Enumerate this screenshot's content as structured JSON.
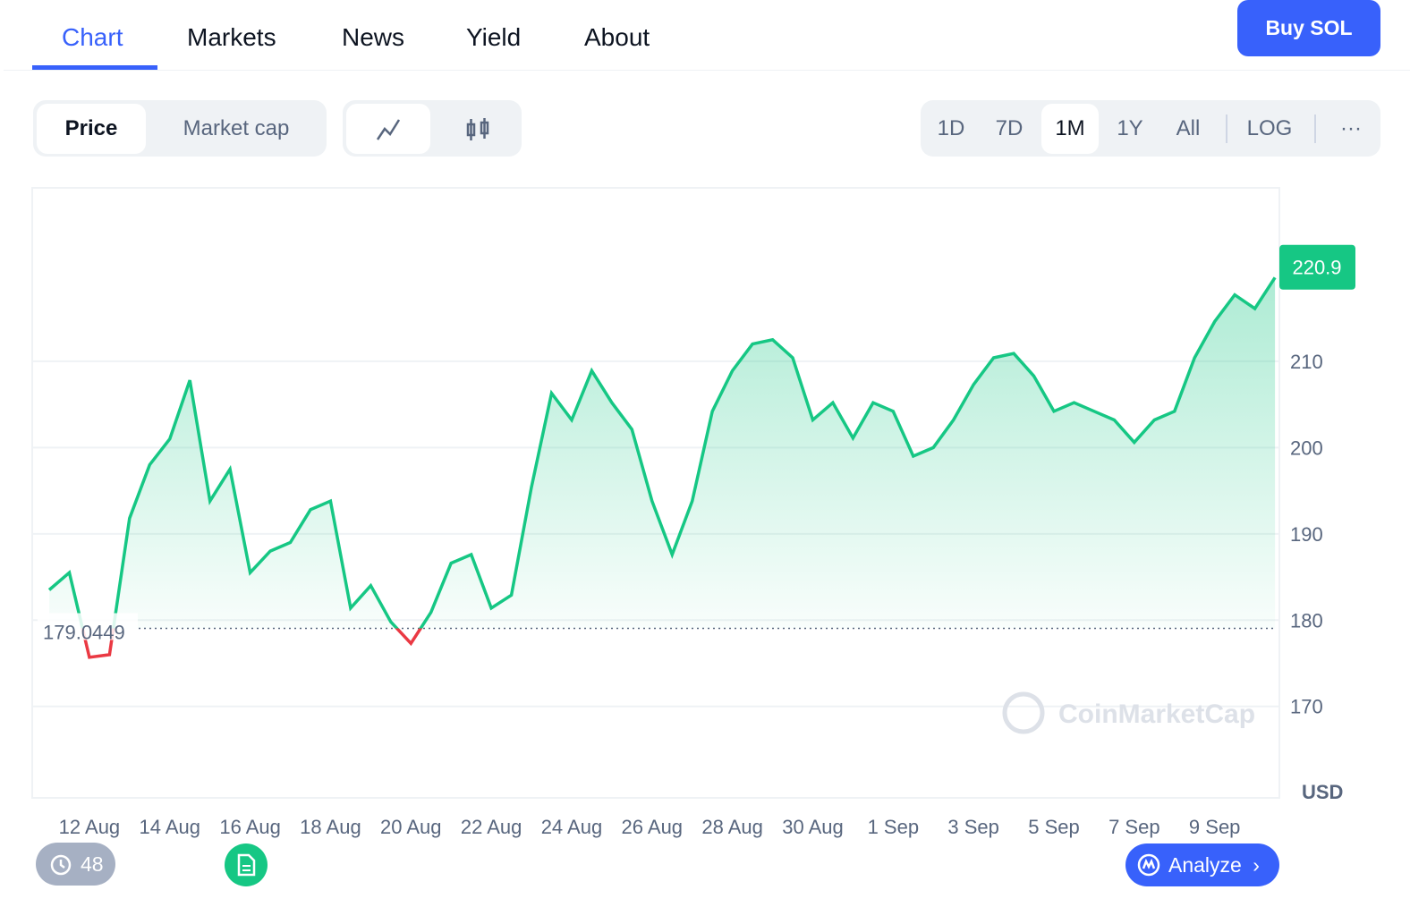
{
  "nav": {
    "tabs": [
      "Chart",
      "Markets",
      "News",
      "Yield",
      "About"
    ],
    "buy_button": "Buy SOL"
  },
  "toolbar": {
    "metrics": [
      "Price",
      "Market cap"
    ],
    "ranges": [
      "1D",
      "7D",
      "1M",
      "1Y",
      "All"
    ],
    "log": "LOG",
    "more": "···"
  },
  "chart_data": {
    "type": "line",
    "color": "#16c784",
    "below_color": "#ea3943",
    "categories": [
      null,
      null,
      "12 Aug",
      null,
      null,
      null,
      "14 Aug",
      null,
      null,
      null,
      "16 Aug",
      null,
      null,
      null,
      "18 Aug",
      null,
      null,
      null,
      "20 Aug",
      null,
      null,
      null,
      "22 Aug",
      null,
      null,
      null,
      "24 Aug",
      null,
      null,
      null,
      "26 Aug",
      null,
      null,
      null,
      "28 Aug",
      null,
      null,
      null,
      "30 Aug",
      null,
      null,
      null,
      "1 Sep",
      null,
      null,
      null,
      "3 Sep",
      null,
      null,
      null,
      "5 Sep",
      null,
      null,
      null,
      "7 Sep",
      null,
      null,
      null,
      "9 Sep",
      null,
      null,
      null
    ],
    "values": [
      183.5,
      185.5,
      175.7,
      176,
      191.8,
      198,
      201,
      207.8,
      193.8,
      197.5,
      185.5,
      188,
      189,
      192.8,
      193.8,
      181.4,
      184,
      179.8,
      177.3,
      180.9,
      186.6,
      187.6,
      181.4,
      182.9,
      195.4,
      206.3,
      203.2,
      208.9,
      205.2,
      202.1,
      193.8,
      187.6,
      193.8,
      204.2,
      208.9,
      212,
      212.5,
      210.4,
      203.2,
      205.2,
      201.1,
      205.2,
      204.2,
      199,
      200,
      203.2,
      207.3,
      210.4,
      210.9,
      208.3,
      204.2,
      205.2,
      204.2,
      203.2,
      200.6,
      203.2,
      204.2,
      210.4,
      214.6,
      217.7,
      216.1,
      219.7
    ],
    "baseline": 179.0449,
    "current_price": 220.9,
    "ylim": [
      159.4,
      230.1
    ],
    "yticks": [
      170,
      180,
      190,
      200,
      210
    ],
    "grid": true,
    "y_unit": "USD",
    "watermark": "CoinMarketCap"
  },
  "footer": {
    "history_count": "48",
    "analyze": "Analyze"
  }
}
